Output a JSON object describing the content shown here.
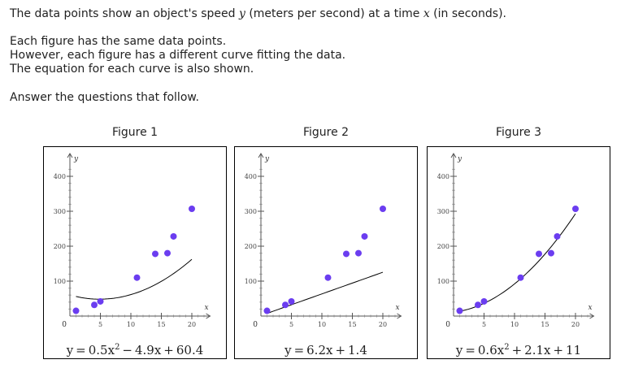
{
  "intro": {
    "line1_pre": "The data points show an object's speed",
    "var_y": "y",
    "line1_mid": "(meters per second) at a time",
    "var_x": "x",
    "line1_post": "(in seconds).",
    "line2": "Each figure has the same data points.",
    "line3": "However, each figure has a different curve fitting the data.",
    "line4": "The equation for each curve is also shown.",
    "line5": "Answer the questions that follow."
  },
  "colors": {
    "point": "#6b3df0",
    "curve": "#000000",
    "axis": "#555555"
  },
  "figures": [
    {
      "title": "Figure 1",
      "eq_a": "y = 0.5x",
      "eq_exp": "2",
      "eq_b": " − 4.9x + 60.4"
    },
    {
      "title": "Figure 2",
      "eq_a": "y = 6.2x + 1.4",
      "eq_exp": "",
      "eq_b": ""
    },
    {
      "title": "Figure 3",
      "eq_a": "y = 0.6x",
      "eq_exp": "2",
      "eq_b": " + 2.1x + 11"
    }
  ],
  "chart_data": [
    {
      "type": "scatter",
      "title": "Figure 1",
      "xlabel": "x",
      "ylabel": "y",
      "xlim": [
        0,
        23
      ],
      "ylim": [
        0,
        420
      ],
      "xticks": [
        5,
        10,
        15,
        20
      ],
      "yticks": [
        100,
        200,
        300,
        400
      ],
      "origin_label": "0",
      "points": [
        [
          1,
          15
        ],
        [
          4,
          32
        ],
        [
          5,
          42
        ],
        [
          11,
          110
        ],
        [
          14,
          178
        ],
        [
          16,
          180
        ],
        [
          17,
          228
        ],
        [
          20,
          307
        ]
      ],
      "curve": {
        "kind": "quadratic",
        "coef": [
          0.5,
          -4.9,
          60.4
        ],
        "domain": [
          1,
          20
        ]
      }
    },
    {
      "type": "scatter",
      "title": "Figure 2",
      "xlabel": "x",
      "ylabel": "y",
      "xlim": [
        0,
        23
      ],
      "ylim": [
        0,
        420
      ],
      "xticks": [
        5,
        10,
        15,
        20
      ],
      "yticks": [
        100,
        200,
        300,
        400
      ],
      "origin_label": "0",
      "points": [
        [
          1,
          15
        ],
        [
          4,
          32
        ],
        [
          5,
          42
        ],
        [
          11,
          110
        ],
        [
          14,
          178
        ],
        [
          16,
          180
        ],
        [
          17,
          228
        ],
        [
          20,
          307
        ]
      ],
      "curve": {
        "kind": "linear",
        "coef": [
          6.2,
          1.4
        ],
        "domain": [
          1,
          20
        ]
      }
    },
    {
      "type": "scatter",
      "title": "Figure 3",
      "xlabel": "x",
      "ylabel": "y",
      "xlim": [
        0,
        23
      ],
      "ylim": [
        0,
        420
      ],
      "xticks": [
        5,
        10,
        15,
        20
      ],
      "yticks": [
        100,
        200,
        300,
        400
      ],
      "origin_label": "0",
      "points": [
        [
          1,
          15
        ],
        [
          4,
          32
        ],
        [
          5,
          42
        ],
        [
          11,
          110
        ],
        [
          14,
          178
        ],
        [
          16,
          180
        ],
        [
          17,
          228
        ],
        [
          20,
          307
        ]
      ],
      "curve": {
        "kind": "quadratic",
        "coef": [
          0.6,
          2.1,
          11
        ],
        "domain": [
          1,
          20
        ]
      }
    }
  ]
}
